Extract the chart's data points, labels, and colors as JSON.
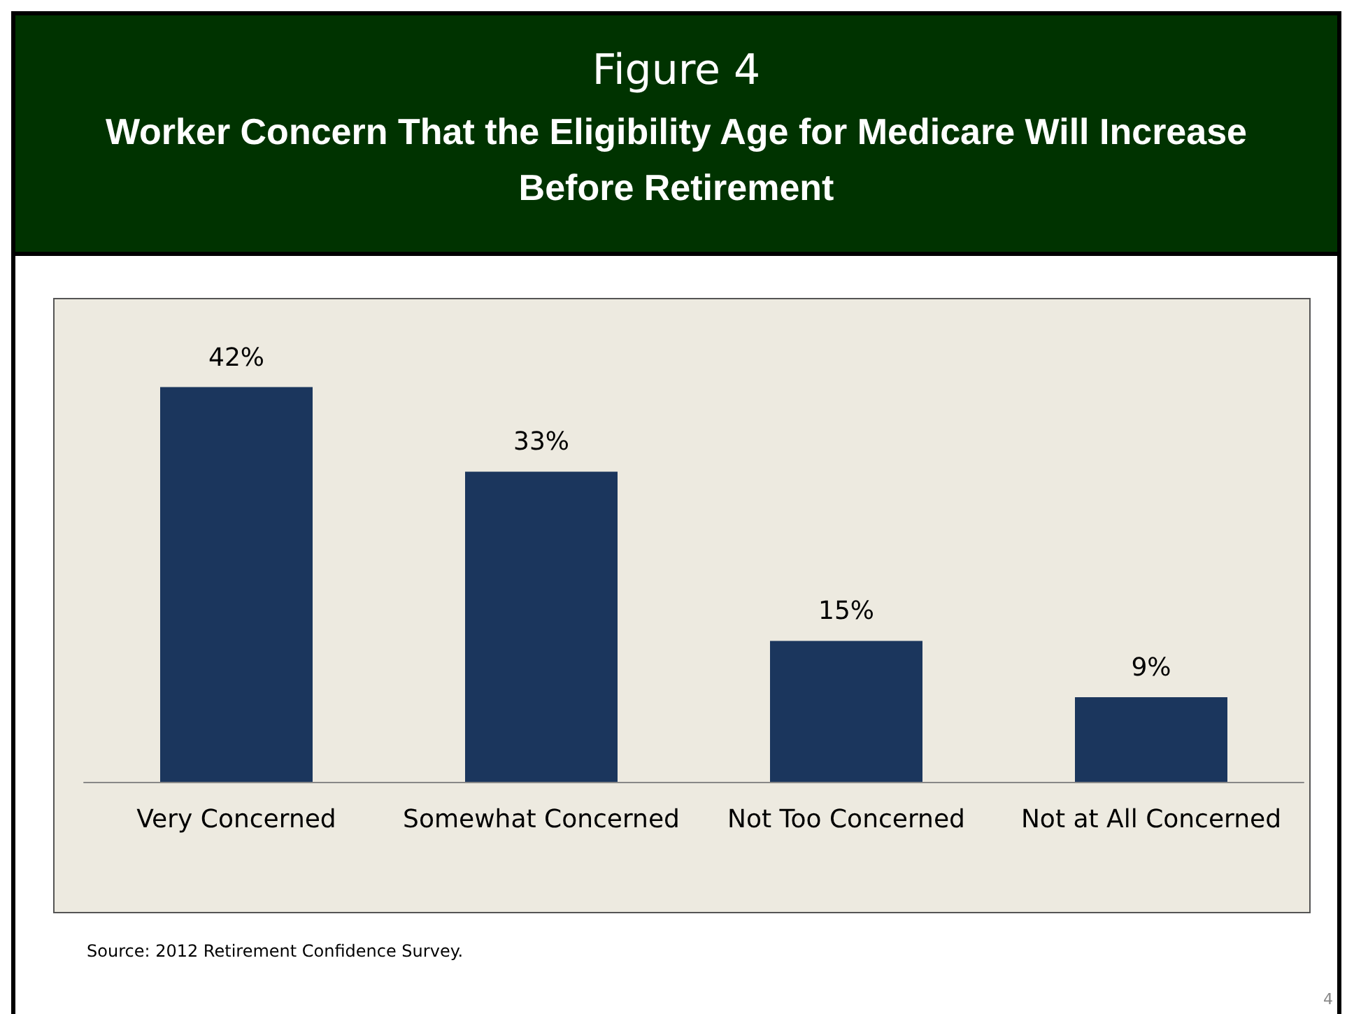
{
  "chart_data": {
    "type": "bar",
    "title": "Figure 4",
    "subtitle": "Worker Concern That the Eligibility Age for Medicare Will Increase Before Retirement",
    "categories": [
      "Very Concerned",
      "Somewhat Concerned",
      "Not Too Concerned",
      "Not at All Concerned"
    ],
    "values": [
      42,
      33,
      15,
      9
    ],
    "value_labels": [
      "42%",
      "33%",
      "15%",
      "9%"
    ],
    "color": "#1b365d",
    "annotations": [
      "Source:  2012 Retirement Confidence Survey.",
      "4"
    ]
  }
}
